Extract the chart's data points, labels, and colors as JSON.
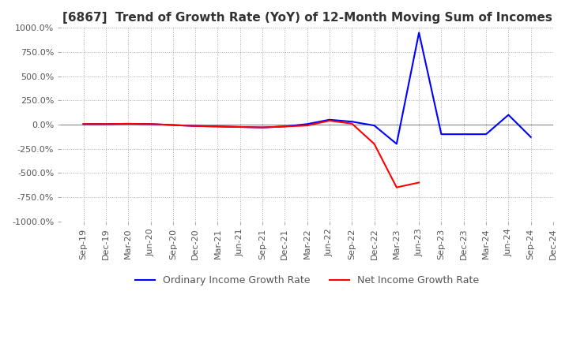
{
  "title": "[6867]  Trend of Growth Rate (YoY) of 12-Month Moving Sum of Incomes",
  "ylim": [
    -1000,
    1000
  ],
  "yticks": [
    1000.0,
    750.0,
    500.0,
    250.0,
    0.0,
    -250.0,
    -500.0,
    -750.0,
    -1000.0
  ],
  "xlabel_dates": [
    "Sep-19",
    "Dec-19",
    "Mar-20",
    "Jun-20",
    "Sep-20",
    "Dec-20",
    "Mar-21",
    "Jun-21",
    "Sep-21",
    "Dec-21",
    "Mar-22",
    "Jun-22",
    "Sep-22",
    "Dec-22",
    "Mar-23",
    "Jun-23",
    "Sep-23",
    "Dec-23",
    "Mar-24",
    "Jun-24",
    "Sep-24",
    "Dec-24"
  ],
  "ordinary_income": [
    5.0,
    5.0,
    8.0,
    5.0,
    -5.0,
    -15.0,
    -20.0,
    -25.0,
    -30.0,
    -20.0,
    5.0,
    50.0,
    30.0,
    -10.0,
    -200.0,
    950.0,
    -100.0,
    -100.0,
    -100.0,
    100.0,
    -130.0,
    null
  ],
  "net_income": [
    5.0,
    5.0,
    8.0,
    5.0,
    -5.0,
    -15.0,
    -20.0,
    -25.0,
    -30.0,
    -20.0,
    -10.0,
    40.0,
    10.0,
    -200.0,
    -650.0,
    -600.0,
    null,
    null,
    null,
    null,
    null,
    null
  ],
  "ordinary_color": "#0000ff",
  "net_color": "#ff0000",
  "background_color": "#ffffff",
  "grid_color": "#aaaaaa",
  "title_fontsize": 11,
  "legend_fontsize": 9,
  "tick_fontsize": 8
}
